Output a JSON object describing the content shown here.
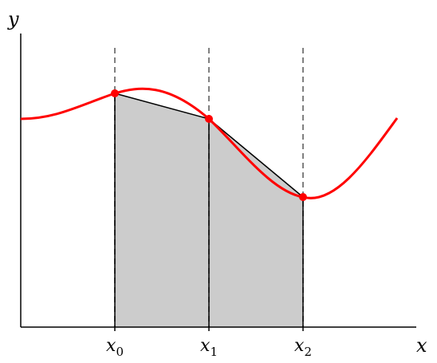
{
  "axes": {
    "x_label": "x",
    "y_label": "y"
  },
  "ticks": [
    {
      "base": "x",
      "sub": "0"
    },
    {
      "base": "x",
      "sub": "1"
    },
    {
      "base": "x",
      "sub": "2"
    }
  ],
  "colors": {
    "curve": "#ff0000",
    "trapezoid_fill": "#cccccc",
    "guide_lines": "#808080",
    "axes": "#000000"
  }
}
